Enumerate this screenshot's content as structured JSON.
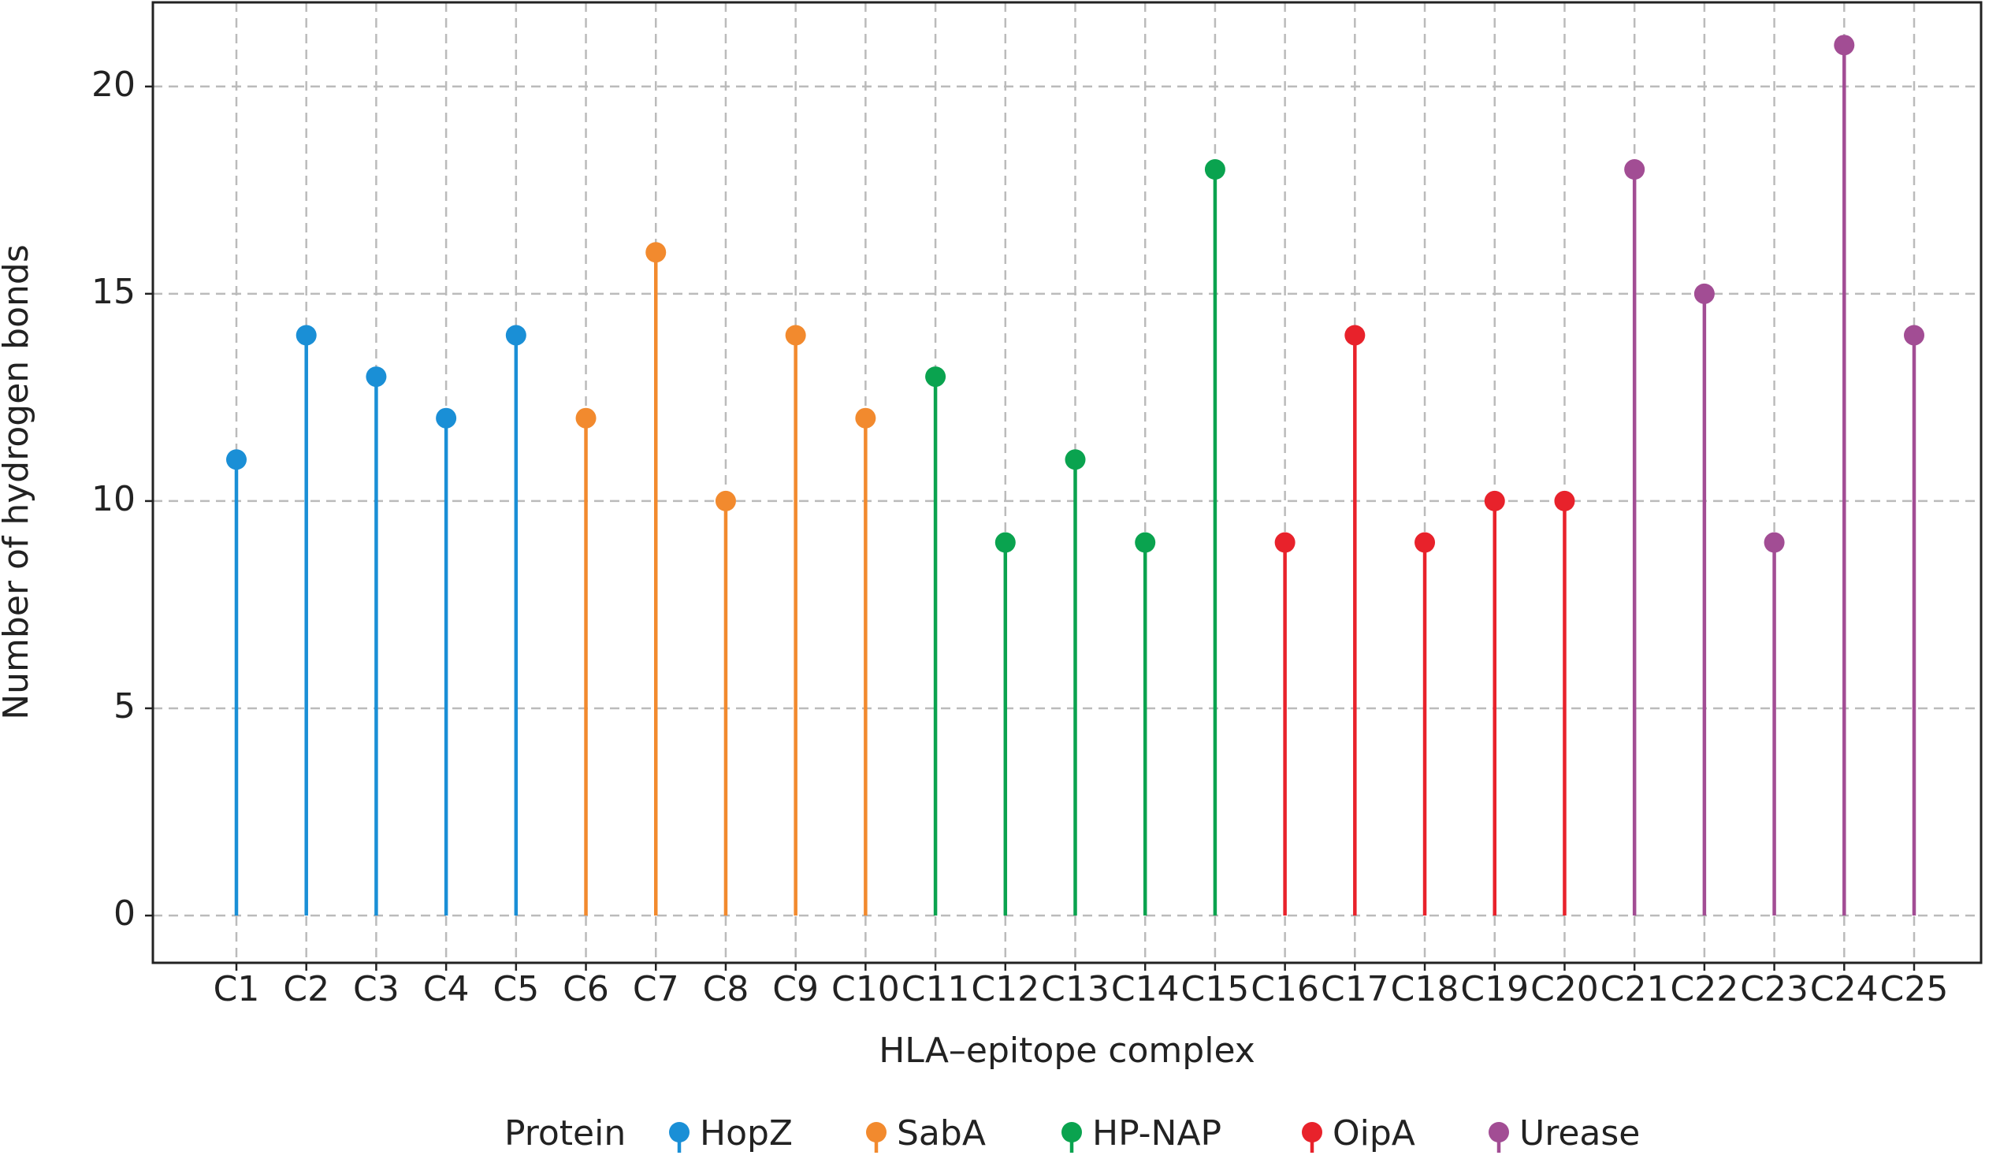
{
  "chart_data": {
    "type": "lollipop",
    "x_label": "HLA–epitope complex",
    "y_label": "Number of hydrogen bonds",
    "legend_title": "Protein",
    "legend": "bottom",
    "grid": true,
    "categories": [
      "C1",
      "C2",
      "C3",
      "C4",
      "C5",
      "C6",
      "C7",
      "C8",
      "C9",
      "C10",
      "C11",
      "C12",
      "C13",
      "C14",
      "C15",
      "C16",
      "C17",
      "C18",
      "C19",
      "C20",
      "C21",
      "C22",
      "C23",
      "C24",
      "C25"
    ],
    "ylim": [
      -1.14,
      22.03
    ],
    "yticks": [
      0,
      5,
      10,
      15,
      20
    ],
    "series": [
      {
        "name": "HopZ",
        "color": "#1a8fd6",
        "values": [
          11,
          14,
          13,
          12,
          14,
          null,
          null,
          null,
          null,
          null,
          null,
          null,
          null,
          null,
          null,
          null,
          null,
          null,
          null,
          null,
          null,
          null,
          null,
          null,
          null
        ]
      },
      {
        "name": "SabA",
        "color": "#f28a2e",
        "values": [
          null,
          null,
          null,
          null,
          null,
          12,
          16,
          10,
          14,
          12,
          null,
          null,
          null,
          null,
          null,
          null,
          null,
          null,
          null,
          null,
          null,
          null,
          null,
          null,
          null
        ]
      },
      {
        "name": "HP-NAP",
        "color": "#0aa34f",
        "values": [
          null,
          null,
          null,
          null,
          null,
          null,
          null,
          null,
          null,
          null,
          13,
          9,
          11,
          9,
          18,
          null,
          null,
          null,
          null,
          null,
          null,
          null,
          null,
          null,
          null
        ]
      },
      {
        "name": "OipA",
        "color": "#e8222b",
        "values": [
          null,
          null,
          null,
          null,
          null,
          null,
          null,
          null,
          null,
          null,
          null,
          null,
          null,
          null,
          null,
          9,
          14,
          9,
          10,
          10,
          null,
          null,
          null,
          null,
          null
        ]
      },
      {
        "name": "Urease",
        "color": "#a24d94",
        "values": [
          null,
          null,
          null,
          null,
          null,
          null,
          null,
          null,
          null,
          null,
          null,
          null,
          null,
          null,
          null,
          null,
          null,
          null,
          null,
          null,
          18,
          15,
          9,
          21,
          14
        ]
      }
    ]
  }
}
